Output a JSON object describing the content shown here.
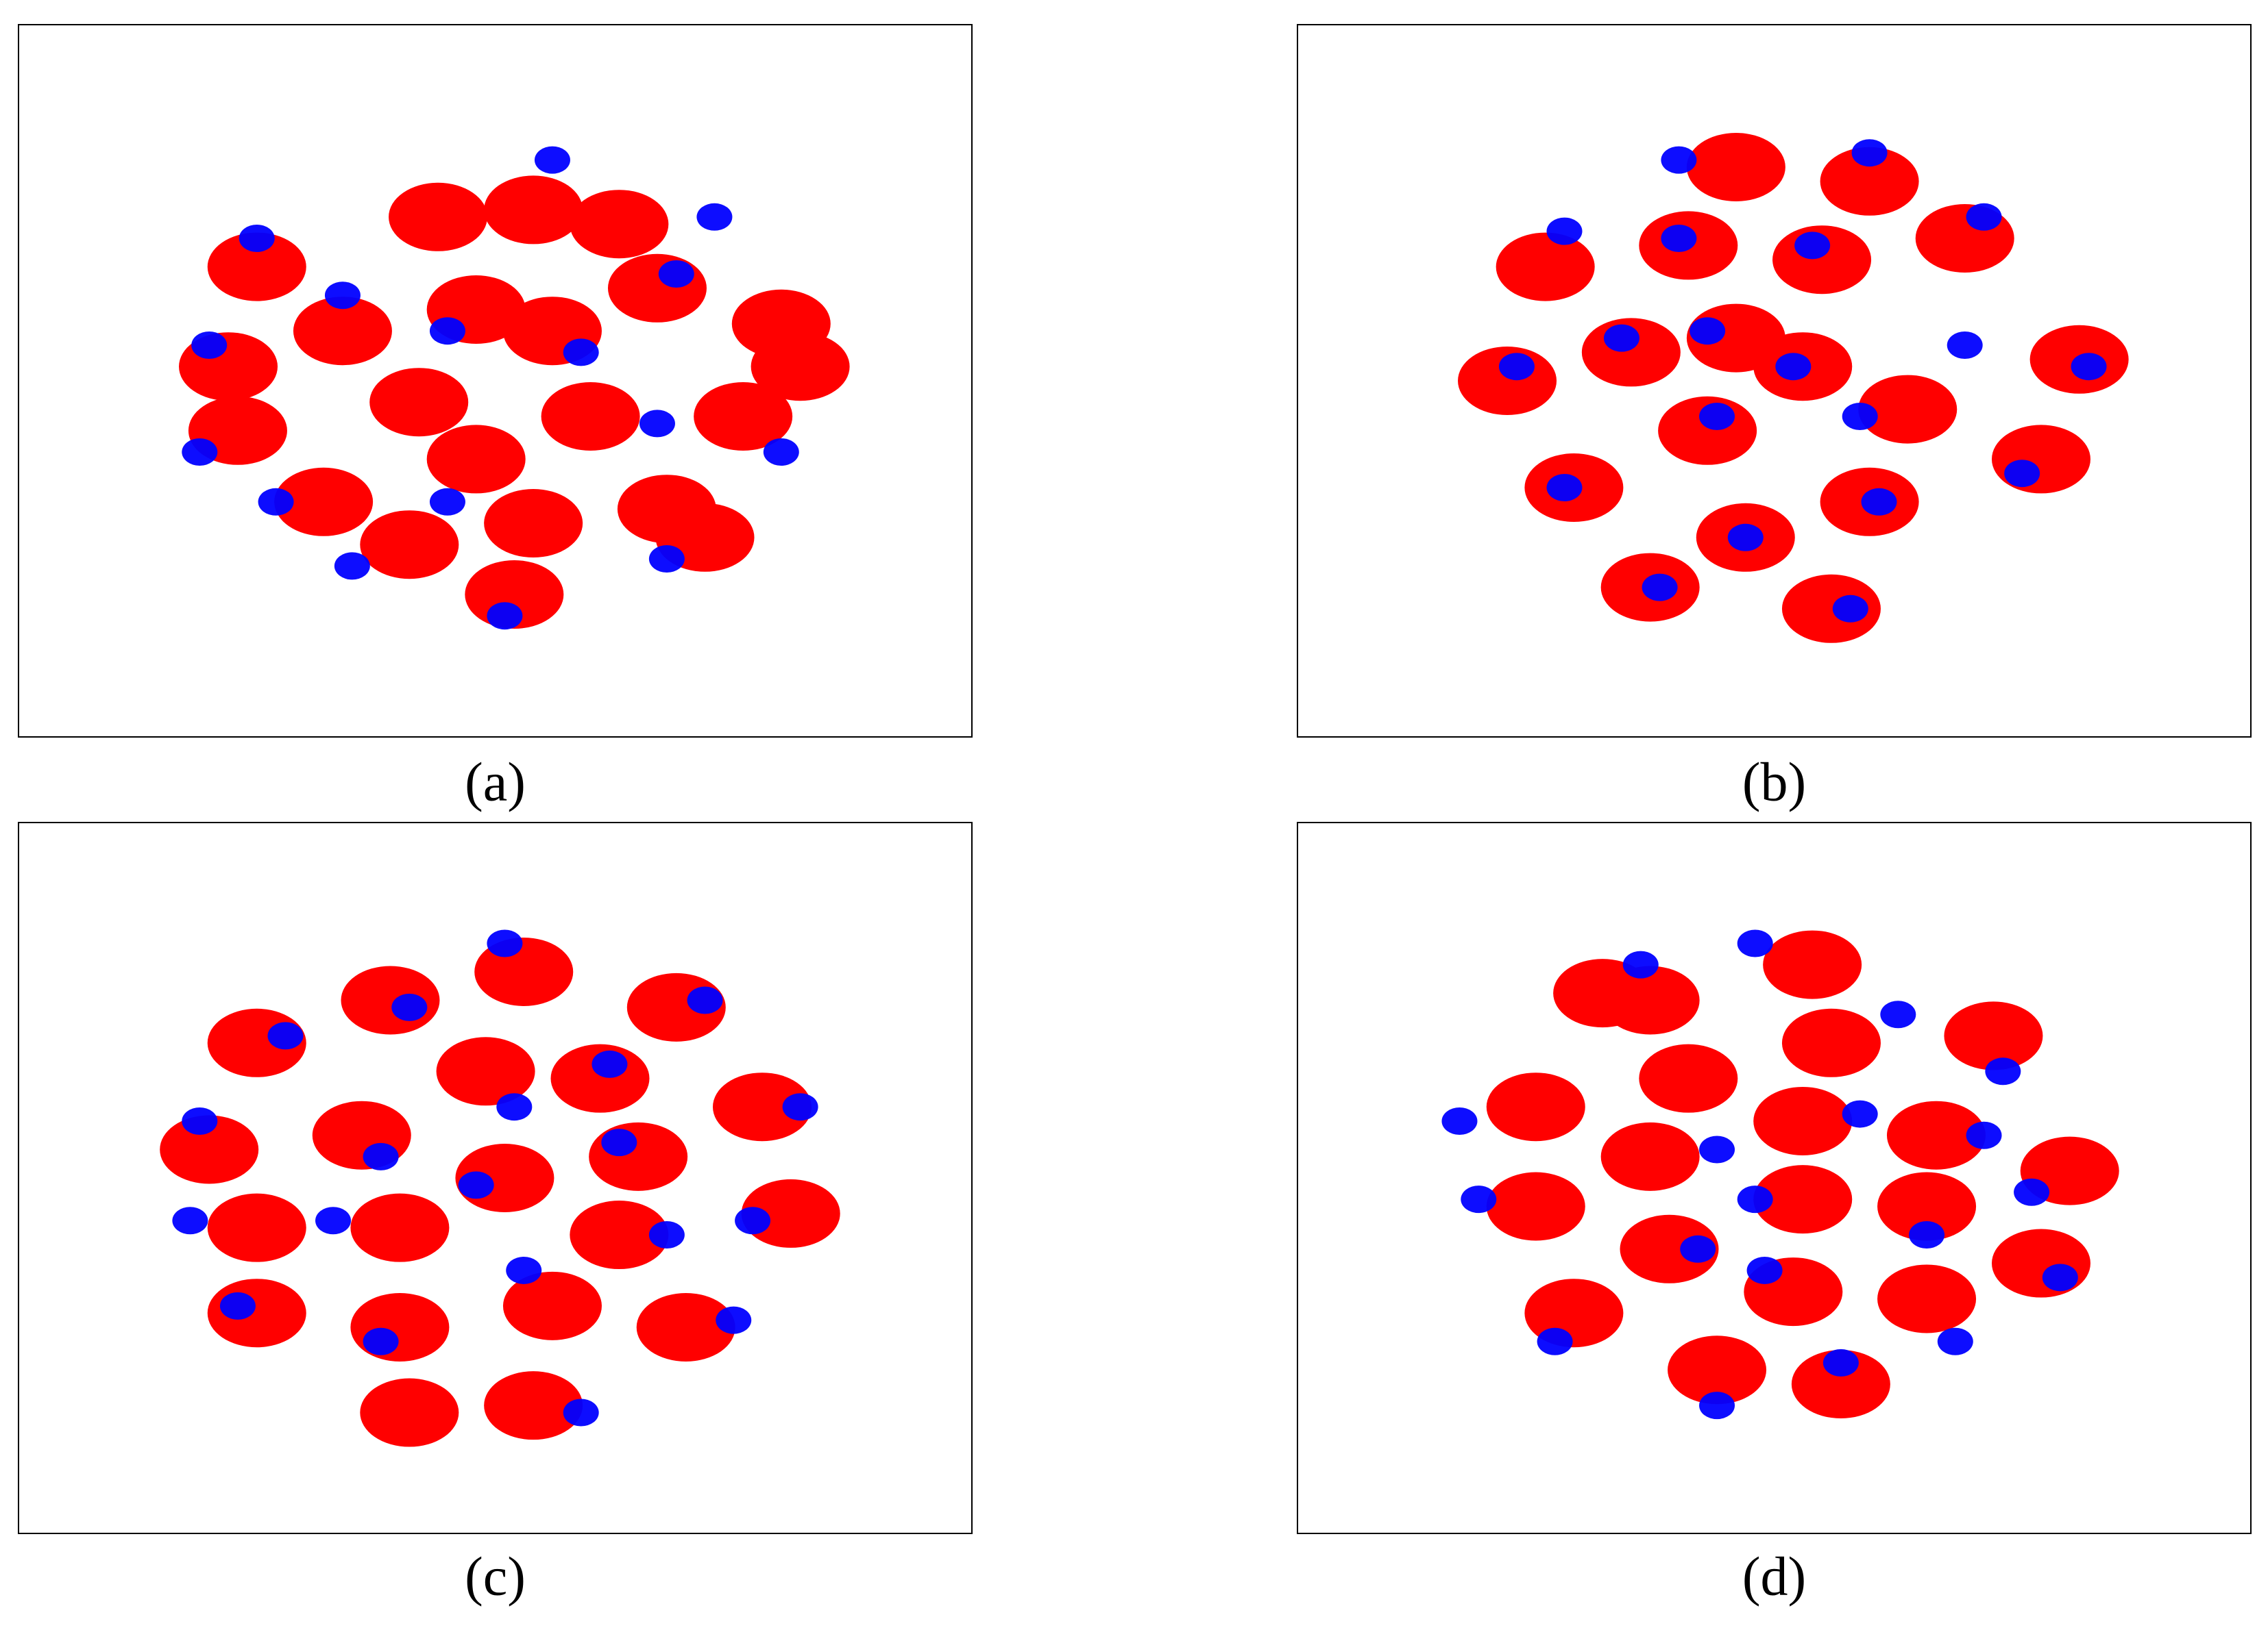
{
  "chart_data": [
    {
      "type": "scatter",
      "caption": "(a)",
      "xlim": [
        0,
        100
      ],
      "ylim": [
        0,
        100
      ],
      "series": [
        {
          "color": "#ff0000",
          "x": [
            25,
            22,
            23,
            34,
            44,
            54,
            63,
            48,
            56,
            67,
            80,
            76,
            42,
            48,
            60,
            32,
            41,
            54,
            68,
            52,
            72,
            82
          ],
          "values": [
            66,
            52,
            43,
            57,
            73,
            74,
            72,
            60,
            57,
            63,
            58,
            45,
            47,
            39,
            45,
            33,
            27,
            30,
            32,
            20,
            28,
            52
          ]
        },
        {
          "color": "#0000ff",
          "x": [
            25,
            20,
            19,
            34,
            56,
            73,
            35,
            45,
            51,
            67,
            59,
            45,
            80,
            68,
            27,
            69
          ],
          "values": [
            70,
            55,
            40,
            62,
            81,
            73,
            24,
            33,
            17,
            44,
            54,
            57,
            40,
            25,
            33,
            65
          ]
        }
      ]
    },
    {
      "type": "scatter",
      "caption": "(b)",
      "xlim": [
        0,
        100
      ],
      "ylim": [
        0,
        100
      ],
      "series": [
        {
          "color": "#ff0000",
          "x": [
            46,
            60,
            26,
            41,
            55,
            70,
            35,
            46,
            53,
            22,
            64,
            82,
            43,
            29,
            78,
            47,
            60,
            37,
            56
          ],
          "values": [
            80,
            78,
            66,
            69,
            67,
            70,
            54,
            56,
            52,
            50,
            46,
            53,
            43,
            35,
            39,
            28,
            33,
            21,
            18
          ]
        },
        {
          "color": "#0000ff",
          "x": [
            40,
            60,
            72,
            28,
            40,
            54,
            34,
            43,
            52,
            23,
            59,
            83,
            70,
            44,
            28,
            76,
            47,
            61,
            38,
            58
          ],
          "values": [
            81,
            82,
            73,
            71,
            70,
            69,
            56,
            57,
            52,
            52,
            45,
            52,
            55,
            45,
            35,
            37,
            28,
            33,
            21,
            18
          ]
        }
      ]
    },
    {
      "type": "scatter",
      "caption": "(c)",
      "xlim": [
        0,
        100
      ],
      "ylim": [
        0,
        100
      ],
      "series": [
        {
          "color": "#ff0000",
          "x": [
            25,
            39,
            53,
            69,
            20,
            36,
            49,
            61,
            78,
            25,
            40,
            51,
            65,
            81,
            25,
            40,
            56,
            63,
            70,
            54,
            41
          ],
          "values": [
            69,
            75,
            79,
            74,
            54,
            56,
            65,
            64,
            60,
            43,
            43,
            50,
            53,
            45,
            31,
            29,
            32,
            42,
            29,
            18,
            17
          ]
        },
        {
          "color": "#0000ff",
          "x": [
            28,
            41,
            51,
            72,
            19,
            38,
            52,
            62,
            82,
            18,
            33,
            48,
            63,
            77,
            23,
            38,
            53,
            68,
            75,
            59
          ],
          "values": [
            70,
            74,
            83,
            75,
            58,
            53,
            60,
            66,
            60,
            44,
            44,
            49,
            55,
            44,
            32,
            27,
            37,
            42,
            30,
            17
          ]
        }
      ]
    },
    {
      "type": "scatter",
      "caption": "(d)",
      "xlim": [
        0,
        100
      ],
      "ylim": [
        0,
        100
      ],
      "series": [
        {
          "color": "#ff0000",
          "x": [
            37,
            54,
            73,
            56,
            41,
            25,
            53,
            67,
            81,
            25,
            37,
            53,
            66,
            39,
            52,
            66,
            78,
            29,
            44,
            57,
            32
          ],
          "values": [
            75,
            80,
            70,
            69,
            64,
            60,
            58,
            56,
            51,
            46,
            53,
            47,
            46,
            40,
            34,
            33,
            38,
            31,
            23,
            21,
            76
          ]
        },
        {
          "color": "#0000ff",
          "x": [
            36,
            48,
            63,
            74,
            17,
            44,
            59,
            72,
            77,
            19,
            48,
            66,
            42,
            49,
            69,
            27,
            44,
            57,
            80
          ],
          "values": [
            80,
            83,
            73,
            65,
            58,
            54,
            59,
            56,
            48,
            47,
            47,
            42,
            40,
            37,
            27,
            27,
            18,
            24,
            36
          ]
        }
      ]
    }
  ]
}
